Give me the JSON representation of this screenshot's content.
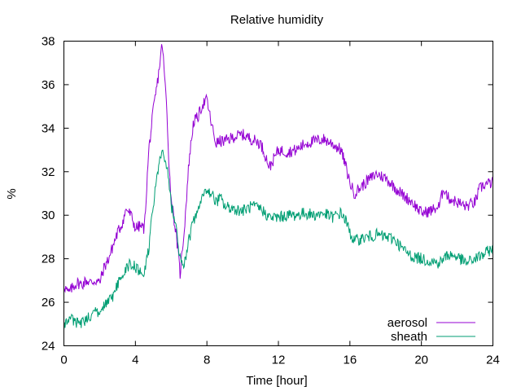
{
  "chart_data": {
    "type": "line",
    "title": "Relative humidity",
    "xlabel": "Time [hour]",
    "ylabel": "%",
    "xlim": [
      0,
      24
    ],
    "ylim": [
      24,
      38
    ],
    "xticks": [
      0,
      4,
      8,
      12,
      16,
      20,
      24
    ],
    "yticks": [
      24,
      26,
      28,
      30,
      32,
      34,
      36,
      38
    ],
    "grid": false,
    "legend_position": "bottom-right",
    "series": [
      {
        "name": "aerosol",
        "color": "#9400d3",
        "points": [
          [
            0,
            26.8
          ],
          [
            0.25,
            26.4
          ],
          [
            0.5,
            26.7
          ],
          [
            0.75,
            26.9
          ],
          [
            1.0,
            26.8
          ],
          [
            1.25,
            27.0
          ],
          [
            1.5,
            26.9
          ],
          [
            1.75,
            27.0
          ],
          [
            2.0,
            26.9
          ],
          [
            2.25,
            27.6
          ],
          [
            2.5,
            28.0
          ],
          [
            2.75,
            28.6
          ],
          [
            3.0,
            29.2
          ],
          [
            3.25,
            29.6
          ],
          [
            3.5,
            30.3
          ],
          [
            3.75,
            30.0
          ],
          [
            4.0,
            29.4
          ],
          [
            4.25,
            29.5
          ],
          [
            4.5,
            29.4
          ],
          [
            4.75,
            33.0
          ],
          [
            5.0,
            34.8
          ],
          [
            5.25,
            36.2
          ],
          [
            5.5,
            37.9
          ],
          [
            5.75,
            35.0
          ],
          [
            5.9,
            32.0
          ],
          [
            6.0,
            30.8
          ],
          [
            6.2,
            29.6
          ],
          [
            6.35,
            28.6
          ],
          [
            6.5,
            27.3
          ],
          [
            6.75,
            29.5
          ],
          [
            7.0,
            32.5
          ],
          [
            7.25,
            34.3
          ],
          [
            7.5,
            34.5
          ],
          [
            7.75,
            35.1
          ],
          [
            8.0,
            35.3
          ],
          [
            8.25,
            34.2
          ],
          [
            8.5,
            33.3
          ],
          [
            8.75,
            33.4
          ],
          [
            9.0,
            33.4
          ],
          [
            9.5,
            33.6
          ],
          [
            10.0,
            33.7
          ],
          [
            10.5,
            33.5
          ],
          [
            11.0,
            33.3
          ],
          [
            11.25,
            32.8
          ],
          [
            11.5,
            32.2
          ],
          [
            12.0,
            33.0
          ],
          [
            12.5,
            32.9
          ],
          [
            13.0,
            33.0
          ],
          [
            13.5,
            33.3
          ],
          [
            14.0,
            33.4
          ],
          [
            14.5,
            33.5
          ],
          [
            15.0,
            33.3
          ],
          [
            15.5,
            33.0
          ],
          [
            15.75,
            32.3
          ],
          [
            16.0,
            31.5
          ],
          [
            16.25,
            31.0
          ],
          [
            16.5,
            31.2
          ],
          [
            17.0,
            31.6
          ],
          [
            17.5,
            31.9
          ],
          [
            18.0,
            31.7
          ],
          [
            18.5,
            31.3
          ],
          [
            19.0,
            30.9
          ],
          [
            19.5,
            30.6
          ],
          [
            20.0,
            30.1
          ],
          [
            20.5,
            30.2
          ],
          [
            21.0,
            30.4
          ],
          [
            21.25,
            31.3
          ],
          [
            21.5,
            30.8
          ],
          [
            22.0,
            30.6
          ],
          [
            22.5,
            30.4
          ],
          [
            23.0,
            30.6
          ],
          [
            23.25,
            31.2
          ],
          [
            23.5,
            31.4
          ],
          [
            24.0,
            31.5
          ]
        ]
      },
      {
        "name": "sheath",
        "color": "#009e73",
        "points": [
          [
            0,
            24.9
          ],
          [
            0.25,
            25.3
          ],
          [
            0.5,
            25.2
          ],
          [
            0.75,
            25.0
          ],
          [
            1.0,
            25.1
          ],
          [
            1.25,
            25.2
          ],
          [
            1.5,
            25.4
          ],
          [
            1.75,
            25.6
          ],
          [
            2.0,
            25.5
          ],
          [
            2.25,
            25.8
          ],
          [
            2.5,
            26.0
          ],
          [
            2.75,
            26.3
          ],
          [
            3.0,
            26.8
          ],
          [
            3.25,
            27.2
          ],
          [
            3.5,
            27.6
          ],
          [
            3.75,
            27.8
          ],
          [
            4.0,
            27.6
          ],
          [
            4.25,
            27.4
          ],
          [
            4.5,
            27.3
          ],
          [
            4.75,
            28.5
          ],
          [
            5.0,
            30.5
          ],
          [
            5.25,
            32.0
          ],
          [
            5.5,
            33.0
          ],
          [
            5.75,
            32.3
          ],
          [
            6.0,
            30.5
          ],
          [
            6.25,
            29.5
          ],
          [
            6.5,
            28.0
          ],
          [
            6.75,
            27.8
          ],
          [
            7.0,
            28.9
          ],
          [
            7.25,
            29.7
          ],
          [
            7.5,
            30.2
          ],
          [
            7.75,
            30.8
          ],
          [
            8.0,
            31.2
          ],
          [
            8.25,
            31.0
          ],
          [
            8.5,
            30.6
          ],
          [
            8.75,
            30.8
          ],
          [
            9.0,
            30.4
          ],
          [
            9.5,
            30.3
          ],
          [
            10.0,
            30.2
          ],
          [
            10.5,
            30.4
          ],
          [
            11.0,
            30.3
          ],
          [
            11.5,
            29.9
          ],
          [
            12.0,
            29.9
          ],
          [
            12.5,
            30.0
          ],
          [
            13.0,
            30.0
          ],
          [
            13.5,
            30.1
          ],
          [
            14.0,
            30.0
          ],
          [
            14.5,
            30.1
          ],
          [
            15.0,
            29.9
          ],
          [
            15.5,
            30.1
          ],
          [
            15.75,
            29.8
          ],
          [
            16.0,
            29.2
          ],
          [
            16.25,
            28.8
          ],
          [
            16.5,
            28.9
          ],
          [
            17.0,
            29.0
          ],
          [
            17.5,
            29.1
          ],
          [
            18.0,
            29.0
          ],
          [
            18.5,
            28.9
          ],
          [
            19.0,
            28.4
          ],
          [
            19.5,
            28.1
          ],
          [
            20.0,
            28.0
          ],
          [
            20.5,
            27.9
          ],
          [
            21.0,
            27.8
          ],
          [
            21.5,
            28.2
          ],
          [
            22.0,
            28.1
          ],
          [
            22.5,
            27.8
          ],
          [
            23.0,
            28.0
          ],
          [
            23.5,
            28.2
          ],
          [
            24.0,
            28.5
          ]
        ]
      }
    ]
  }
}
